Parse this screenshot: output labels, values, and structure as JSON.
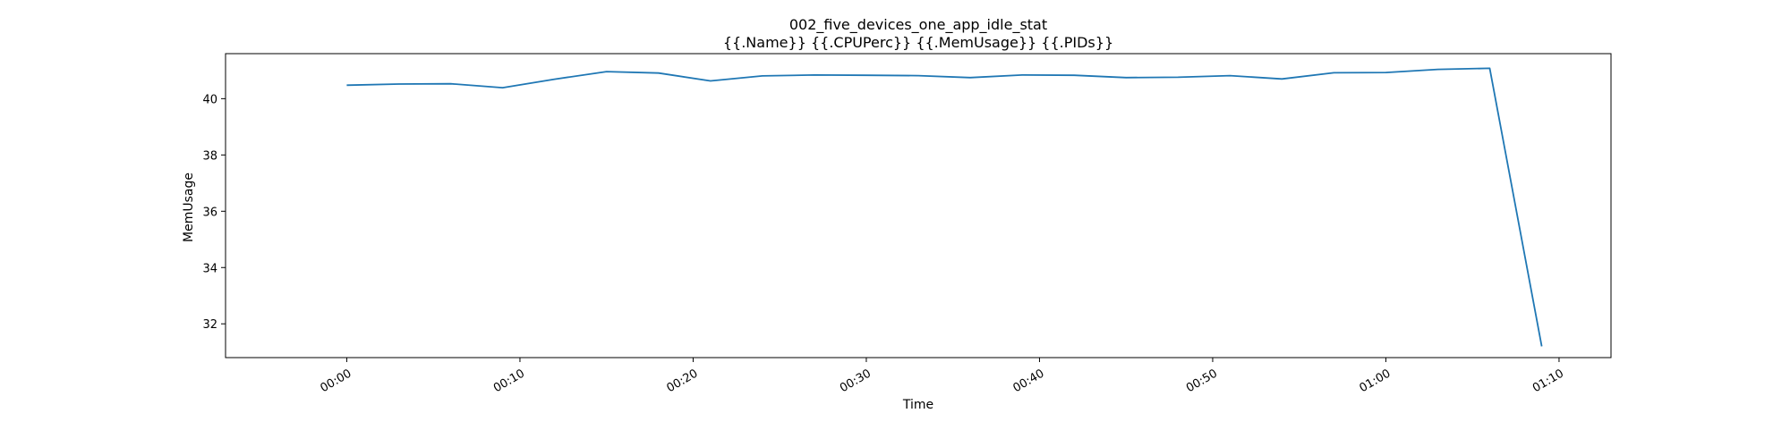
{
  "chart_data": {
    "type": "line",
    "title": "002_five_devices_one_app_idle_stat",
    "subtitle": "{{.Name}} {{.CPUPerc}} {{.MemUsage}}  {{.PIDs}}",
    "xlabel": "Time",
    "ylabel": "MemUsage",
    "xlim": [
      -7,
      73
    ],
    "ylim": [
      30.8,
      41.6
    ],
    "x_ticks": [
      0,
      10,
      20,
      30,
      40,
      50,
      60,
      70
    ],
    "x_tick_labels": [
      "00:00",
      "00:10",
      "00:20",
      "00:30",
      "00:40",
      "00:50",
      "01:00",
      "01:10"
    ],
    "y_ticks": [
      32,
      34,
      36,
      38,
      40
    ],
    "y_tick_labels": [
      "32",
      "34",
      "36",
      "38",
      "40"
    ],
    "grid": false,
    "legend": "none",
    "line_color": "#1f77b4",
    "series": [
      {
        "x": [
          0,
          3,
          6,
          9,
          12,
          15,
          18,
          21,
          24,
          27,
          30,
          33,
          36,
          39,
          42,
          45,
          48,
          51,
          54,
          57,
          60,
          63,
          66,
          69
        ],
        "values": [
          40.48,
          40.52,
          40.53,
          40.39,
          40.69,
          40.96,
          40.91,
          40.63,
          40.81,
          40.84,
          40.83,
          40.82,
          40.75,
          40.84,
          40.83,
          40.75,
          40.76,
          40.82,
          40.7,
          40.92,
          40.93,
          41.04,
          41.08,
          31.2
        ]
      }
    ]
  }
}
